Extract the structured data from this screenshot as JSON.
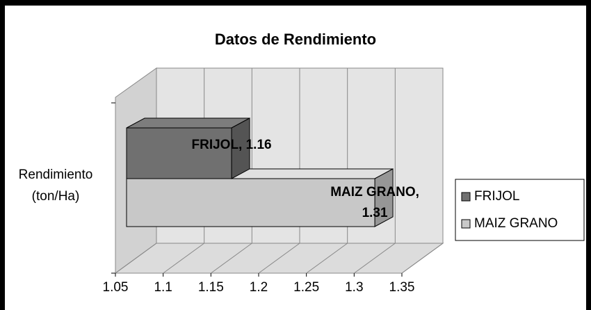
{
  "chart_data": {
    "type": "bar3d",
    "orientation": "horizontal",
    "title": "Datos de Rendimiento",
    "categories": [
      "Rendimiento (ton/Ha)"
    ],
    "series": [
      {
        "name": "FRIJOL",
        "color": "#707070",
        "values": [
          1.16
        ],
        "value_labels": [
          "FRIJOL, 1.16"
        ]
      },
      {
        "name": "MAIZ GRANO",
        "color": "#c8c8c8",
        "values": [
          1.31
        ],
        "value_labels": [
          "MAIZ GRANO, 1.31"
        ]
      }
    ],
    "xlim": [
      1.05,
      1.35
    ],
    "xticks": [
      1.05,
      1.1,
      1.15,
      1.2,
      1.25,
      1.3,
      1.35
    ],
    "grid": true,
    "legend": "right"
  }
}
